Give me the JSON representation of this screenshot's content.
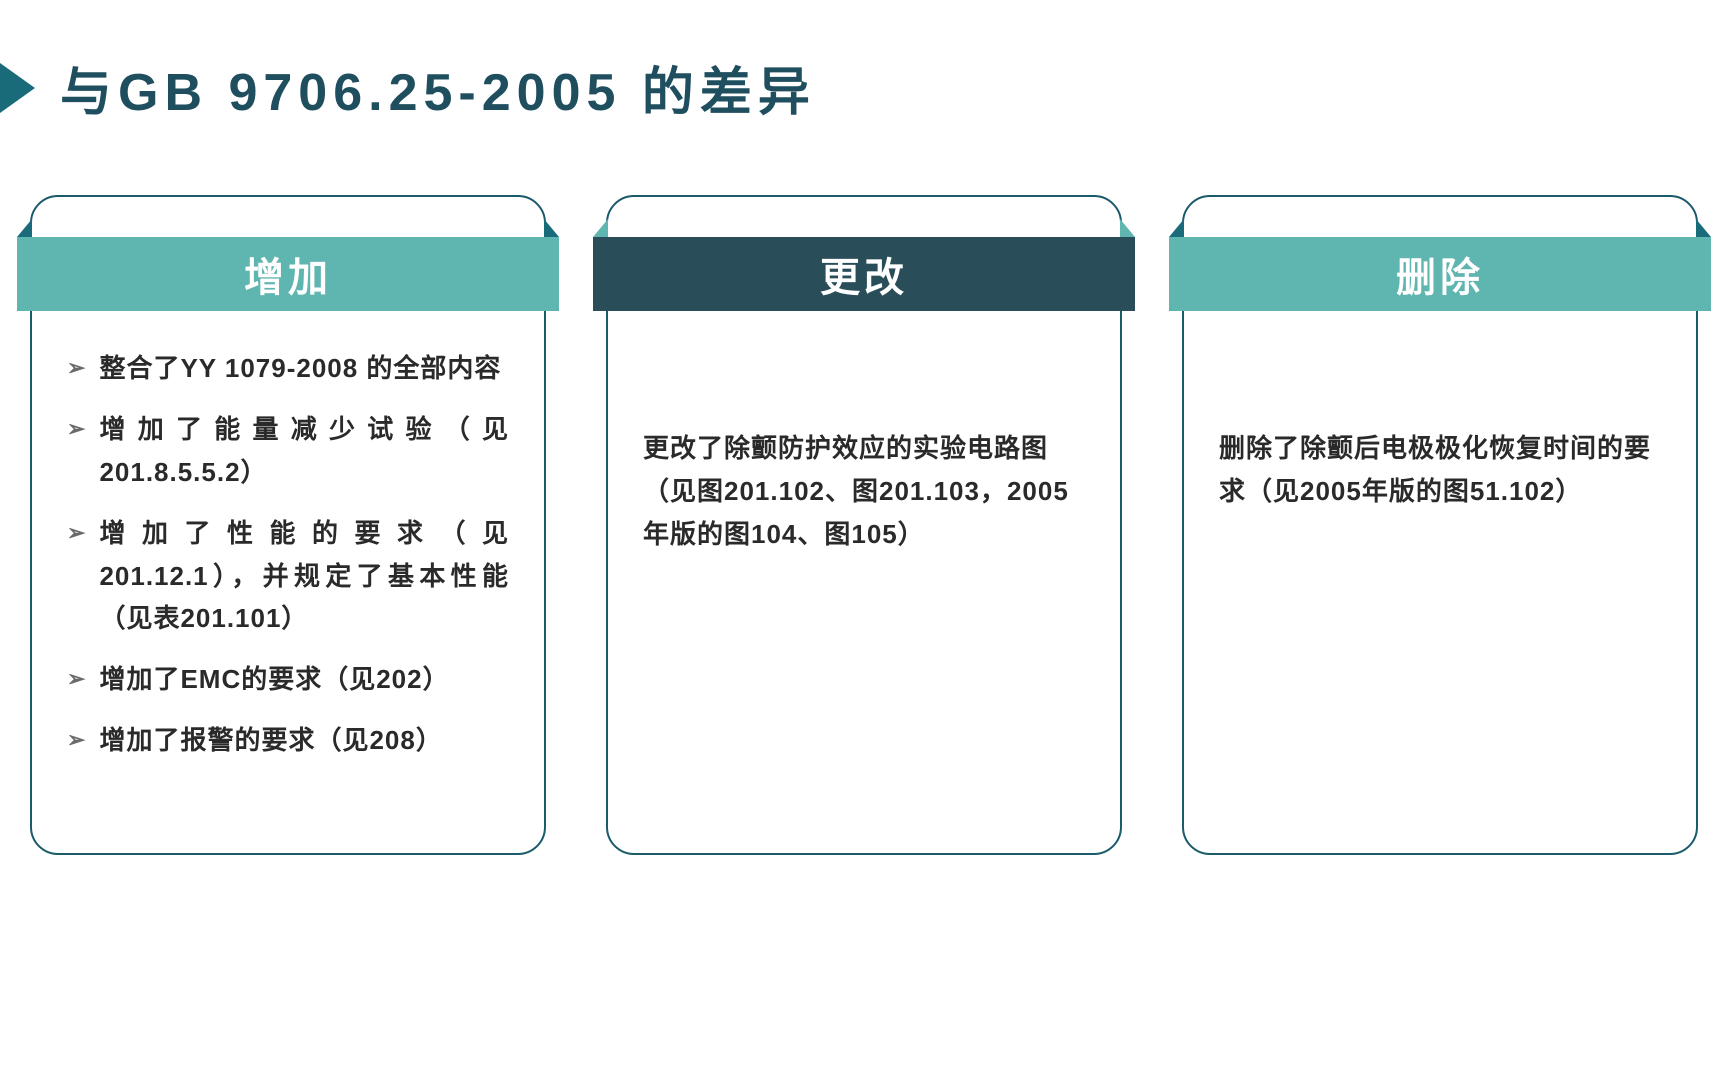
{
  "title": {
    "text": "与GB 9706.25-2005 的差异",
    "color": "#1f4e5f",
    "bullet_color": "#1a6b7a"
  },
  "cards": [
    {
      "header": {
        "title": "增加",
        "bg_color": "#5fb5b0",
        "fold_color": "#1a6b7a"
      },
      "type": "list",
      "items": [
        "整合了YY 1079-2008 的全部内容",
        "增加了能量减少试验（见201.8.5.5.2）",
        "增加了性能的要求（见201.12.1），并规定了基本性能（见表201.101）",
        "增加了EMC的要求（见202）",
        "增加了报警的要求（见208）"
      ]
    },
    {
      "header": {
        "title": "更改",
        "bg_color": "#2a4d5a",
        "fold_color": "#5fb5b0"
      },
      "type": "text",
      "text": "更改了除颤防护效应的实验电路图（见图201.102、图201.103，2005年版的图104、图105）"
    },
    {
      "header": {
        "title": "删除",
        "bg_color": "#5fb5b0",
        "fold_color": "#1a6b7a"
      },
      "type": "text",
      "text": "删除了除颤后电极极化恢复时间的要求（见2005年版的图51.102）"
    }
  ],
  "styles": {
    "card_border_color": "#1a5a6b",
    "background_color": "#ffffff",
    "text_color": "#2a2a2a"
  }
}
